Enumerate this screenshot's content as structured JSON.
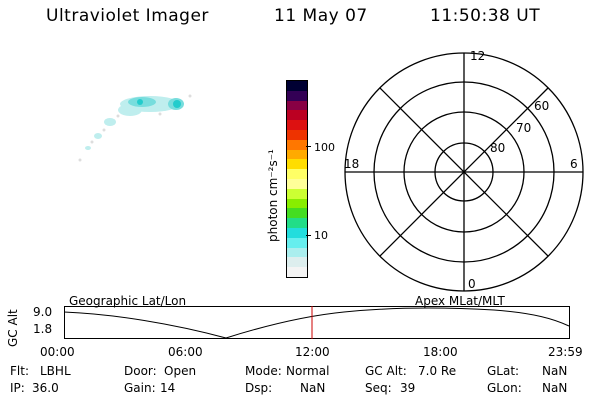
{
  "header": {
    "title": "Ultraviolet Imager",
    "date": "11 May 07",
    "time": "11:50:38 UT"
  },
  "colorbar": {
    "unit_label": "photon cm⁻²s⁻¹",
    "ticks": [
      "100",
      "10"
    ],
    "colors": [
      "#000033",
      "#330055",
      "#880044",
      "#bb0022",
      "#dd1111",
      "#ee3300",
      "#ff7700",
      "#ffaa00",
      "#ffdd00",
      "#ffff66",
      "#ffff99",
      "#ccff33",
      "#88ee00",
      "#44dd22",
      "#22dd88",
      "#22dddd",
      "#66eeee",
      "#aaeeee",
      "#ddeeee",
      "#f4f4f4"
    ]
  },
  "polar": {
    "mlt_labels": {
      "top": "12",
      "right": "6",
      "bottom": "0",
      "left": "18"
    },
    "lat_labels": [
      "60",
      "70",
      "80"
    ]
  },
  "orbit_panel": {
    "ylabel": "GC Alt",
    "y_ticks": [
      "9.0",
      "1.8"
    ],
    "left_title": "Geographic Lat/Lon",
    "right_title": "Apex MLat/MLT",
    "x_ticks": [
      "00:00",
      "06:00",
      "12:00",
      "18:00",
      "23:59"
    ]
  },
  "status": {
    "row1": [
      {
        "k": "Flt:",
        "v": "LBHL"
      },
      {
        "k": "Door:",
        "v": "Open"
      },
      {
        "k": "Mode:",
        "v": "Normal"
      },
      {
        "k": "GC Alt:",
        "v": "7.0 Re"
      },
      {
        "k": "GLat:",
        "v": "NaN"
      }
    ],
    "row2": [
      {
        "k": "IP:",
        "v": "36.0"
      },
      {
        "k": "Gain:",
        "v": "14"
      },
      {
        "k": "Dsp:",
        "v": "NaN"
      },
      {
        "k": "Seq:",
        "v": "39"
      },
      {
        "k": "GLon:",
        "v": "NaN"
      }
    ]
  }
}
